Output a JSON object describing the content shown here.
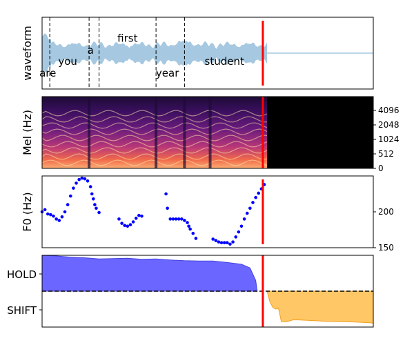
{
  "colors": {
    "waveform": "#a6c8e0",
    "cursor": "#ff0000",
    "f0_points": "#0000ff",
    "hold_fill": "#6b66ff",
    "hold_edge": "#4444dd",
    "shift_fill": "#ffc766",
    "shift_edge": "#f0a020"
  },
  "chart_data": [
    {
      "type": "area",
      "panel": "waveform",
      "ylabel": "waveform",
      "word_boundaries": [
        0.027,
        0.165,
        0.2,
        0.4,
        0.5
      ],
      "words": [
        {
          "text": "are",
          "t": 0.02,
          "level": -0.6
        },
        {
          "text": "you",
          "t": 0.09,
          "level": -0.25
        },
        {
          "text": "a",
          "t": 0.17,
          "level": 0.08
        },
        {
          "text": "first",
          "t": 0.3,
          "level": 0.45
        },
        {
          "text": "year",
          "t": 0.44,
          "level": -0.6
        },
        {
          "text": "student",
          "t": 0.64,
          "level": -0.25
        }
      ],
      "speech_end": 0.79,
      "cursor": 0.775
    },
    {
      "type": "heatmap",
      "panel": "mel",
      "ylabel": "Mel (Hz)",
      "yticks": [
        "0",
        "512",
        "1024",
        "2048",
        "4096"
      ],
      "speech_end": 0.79,
      "cursor": 0.775
    },
    {
      "type": "scatter",
      "panel": "f0",
      "ylabel": "F0 (Hz)",
      "ylim": [
        150,
        250
      ],
      "yticks": [
        150,
        200
      ],
      "cursor": 0.775,
      "segments": [
        {
          "t": [
            0.0,
            0.01,
            0.02,
            0.03,
            0.04,
            0.05,
            0.06,
            0.07,
            0.08,
            0.09,
            0.1,
            0.11,
            0.12,
            0.13,
            0.14,
            0.15,
            0.16,
            0.17,
            0.175,
            0.18,
            0.185,
            0.19,
            0.2
          ],
          "y": [
            200,
            203,
            197,
            196,
            194,
            190,
            188,
            193,
            200,
            210,
            222,
            233,
            240,
            245,
            247,
            246,
            243,
            235,
            225,
            218,
            210,
            205,
            199
          ]
        },
        {
          "t": [
            0.27,
            0.28,
            0.29,
            0.3,
            0.31,
            0.32,
            0.33,
            0.34,
            0.35
          ],
          "y": [
            190,
            184,
            181,
            180,
            182,
            186,
            191,
            195,
            194
          ]
        },
        {
          "t": [
            0.435,
            0.44,
            0.45,
            0.46,
            0.47,
            0.48,
            0.49,
            0.5,
            0.51,
            0.515,
            0.52,
            0.53,
            0.54
          ],
          "y": [
            225,
            205,
            190,
            190,
            190,
            190,
            190,
            188,
            185,
            180,
            176,
            170,
            163
          ]
        },
        {
          "t": [
            0.6,
            0.61,
            0.62,
            0.63,
            0.64,
            0.65,
            0.66,
            0.67,
            0.68,
            0.69,
            0.7,
            0.71,
            0.72,
            0.73,
            0.74,
            0.75,
            0.76,
            0.77,
            0.78
          ],
          "y": [
            162,
            160,
            158,
            157,
            157,
            157,
            155,
            158,
            165,
            172,
            180,
            190,
            198,
            205,
            213,
            220,
            226,
            232,
            238
          ]
        }
      ]
    },
    {
      "type": "area",
      "panel": "turn_taking",
      "yticklabels": [
        "HOLD",
        "SHIFT"
      ],
      "ylim": [
        -1,
        1
      ],
      "threshold": 0,
      "cursor": 0.775,
      "hold": {
        "t": [
          0.0,
          0.05,
          0.1,
          0.15,
          0.2,
          0.25,
          0.3,
          0.35,
          0.4,
          0.45,
          0.5,
          0.55,
          0.6,
          0.65,
          0.7,
          0.73,
          0.75,
          0.755
        ],
        "y": [
          1.0,
          0.98,
          0.95,
          0.93,
          0.9,
          0.91,
          0.92,
          0.89,
          0.9,
          0.87,
          0.85,
          0.84,
          0.84,
          0.8,
          0.75,
          0.65,
          0.3,
          0.0
        ]
      },
      "shift": {
        "t": [
          0.79,
          0.8,
          0.81,
          0.82,
          0.83,
          0.84,
          0.86,
          0.88,
          0.9,
          0.95,
          1.0,
          1.05,
          1.1,
          1.15,
          1.17
        ],
        "y": [
          0.0,
          -0.3,
          -0.45,
          -0.5,
          -0.48,
          -0.85,
          -0.85,
          -0.8,
          -0.8,
          -0.82,
          -0.84,
          -0.85,
          -0.86,
          -0.88,
          -0.9
        ]
      },
      "blips": [
        {
          "t": 0.73,
          "y": 0.25
        },
        {
          "t": 0.775,
          "y": -0.3
        }
      ]
    }
  ]
}
